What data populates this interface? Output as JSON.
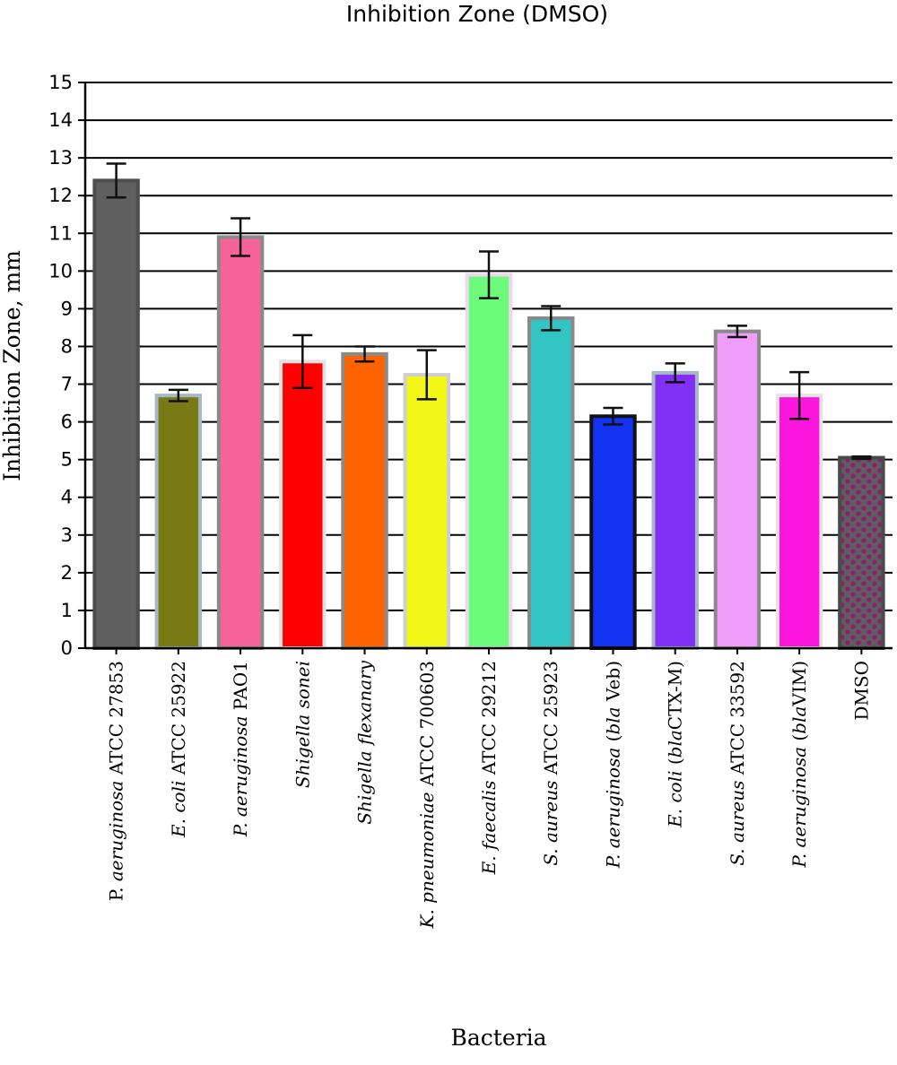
{
  "chart_data": {
    "type": "bar",
    "title": "Inhibition Zone (DMSO)",
    "xlabel": "Bacteria",
    "ylabel": "Inhibition Zone, mm",
    "ylim": [
      0,
      15
    ],
    "yticks": [
      0,
      1,
      2,
      3,
      4,
      5,
      6,
      7,
      8,
      9,
      10,
      11,
      12,
      13,
      14,
      15
    ],
    "grid": true,
    "legend": "none",
    "categories": [
      "P. aeruginosa ATCC 27853",
      "E. coli ATCC 25922",
      "P. aeruginosa PAO1",
      "Shigella sonei",
      "Shigella flexanary",
      "K. pneumoniae ATCC 700603",
      "E. faecalis ATCC 29212",
      "S. aureus ATCC 25923",
      "P. aeruginosa (bla Veb)",
      "E. coli (blaCTX-M)",
      "S. aureus ATCC 33592",
      "P. aeruginosa (blaVIM)",
      "DMSO"
    ],
    "category_parts": [
      [
        {
          "t": "P. ",
          "i": false
        },
        {
          "t": "aeruginosa",
          "i": true
        },
        {
          "t": " ATCC 27853",
          "i": false
        }
      ],
      [
        {
          "t": "E. coli",
          "i": true
        },
        {
          "t": " ATCC 25922",
          "i": false
        }
      ],
      [
        {
          "t": "P. aeruginosa",
          "i": true
        },
        {
          "t": " PAO1",
          "i": false
        }
      ],
      [
        {
          "t": "Shigella sonei",
          "i": true
        }
      ],
      [
        {
          "t": "Shigella flexanary",
          "i": true
        }
      ],
      [
        {
          "t": "K. pneumoniae",
          "i": true
        },
        {
          "t": " ATCC 700603",
          "i": false
        }
      ],
      [
        {
          "t": "E. faecalis",
          "i": true
        },
        {
          "t": " ATCC 29212",
          "i": false
        }
      ],
      [
        {
          "t": "S. aureus",
          "i": true
        },
        {
          "t": " ATCC 25923",
          "i": false
        }
      ],
      [
        {
          "t": "P. aeruginosa",
          "i": true
        },
        {
          "t": " (",
          "i": false
        },
        {
          "t": "bla",
          "i": true
        },
        {
          "t": " Veb)",
          "i": false
        }
      ],
      [
        {
          "t": "E. coli",
          "i": true
        },
        {
          "t": " (",
          "i": false
        },
        {
          "t": "bla",
          "i": true
        },
        {
          "t": "CTX-M)",
          "i": false
        }
      ],
      [
        {
          "t": "S. aureus",
          "i": true
        },
        {
          "t": " ATCC 33592",
          "i": false
        }
      ],
      [
        {
          "t": "P. aeruginosa",
          "i": true
        },
        {
          "t": " (",
          "i": false
        },
        {
          "t": "bla",
          "i": true
        },
        {
          "t": "VIM)",
          "i": false
        }
      ],
      [
        {
          "t": "DMSO",
          "i": false
        }
      ]
    ],
    "values": [
      12.4,
      6.7,
      10.9,
      7.6,
      7.8,
      7.25,
      9.9,
      8.75,
      6.15,
      7.3,
      8.4,
      6.7,
      5.05
    ],
    "errors": [
      0.45,
      0.15,
      0.5,
      0.7,
      0.2,
      0.65,
      0.62,
      0.32,
      0.22,
      0.25,
      0.15,
      0.62,
      0.03
    ],
    "bar_colors": [
      "#5f5f5f",
      "#7a7a14",
      "#f76398",
      "#ff0000",
      "#ff6300",
      "#f2f717",
      "#6cfb7b",
      "#33c4c4",
      "#1332f2",
      "#8230f6",
      "#ef9ef9",
      "#fc16dd",
      "#5e5e5e"
    ],
    "bar_borders": [
      "#4e4e4e",
      "#a6b7c7",
      "#8a8a8a",
      "#e3e3e3",
      "#8a8a8a",
      "#cfcfcf",
      "#eed8ee",
      "#8a8a8a",
      "#111111",
      "#a6b7c7",
      "#8a8a8a",
      "#e3e3e3",
      "#4a4a4a"
    ],
    "dmso_pattern_color": "#8e1c73"
  }
}
